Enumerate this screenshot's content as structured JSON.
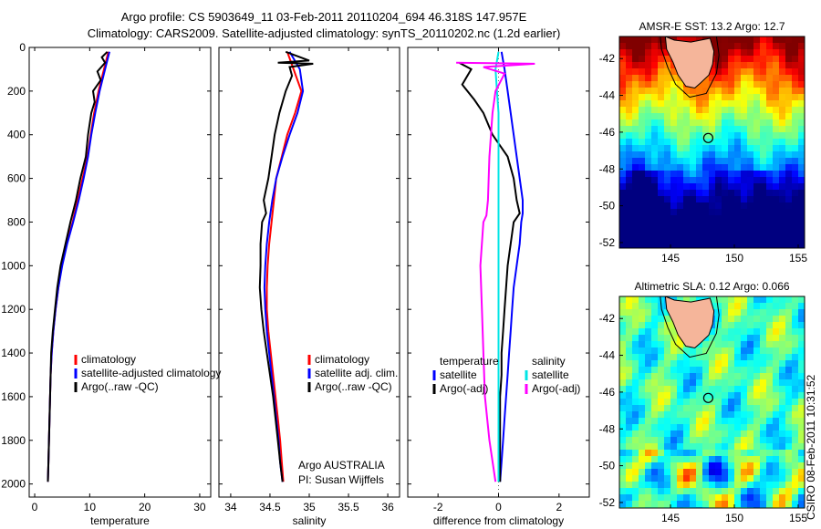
{
  "header": {
    "line1": "Argo profile: CS 5903649_11 03-Feb-2011 20110204_694 46.318S 147.957E",
    "line2": "Climatology: CARS2009. Satellite-adjusted climatology: synTS_20110202.nc (1.2d earlier)"
  },
  "side_label": "CSIRO 08-Feb-2011 10:31:52",
  "colors": {
    "climatology": "#ff0000",
    "satellite": "#0000ff",
    "argo": "#000000",
    "sat_diff_sal": "#00e5e5",
    "argo_diff_sal": "#ff00ff",
    "land": "#f5b59a"
  },
  "chart_data": [
    {
      "id": "temperature",
      "type": "line",
      "xlabel": "temperature",
      "ylabel": "",
      "xlim": [
        -1,
        32
      ],
      "ylim": [
        2060,
        0
      ],
      "x_ticks": [
        0,
        10,
        20,
        30
      ],
      "x_tick_labels": [
        "0",
        "10",
        "20",
        "30"
      ],
      "y_ticks": [
        0,
        200,
        400,
        600,
        800,
        1000,
        1200,
        1400,
        1600,
        1800,
        2000
      ],
      "y_tick_labels": [
        "0",
        "200",
        "400",
        "600",
        "800",
        "1000",
        "1200",
        "1400",
        "1600",
        "1800",
        "2000"
      ],
      "legend": {
        "position": "lower-right",
        "entries": [
          "climatology",
          "satellite-adjusted climatology",
          "Argo(..raw -QC)"
        ]
      },
      "series": [
        {
          "name": "climatology",
          "color": "#ff0000",
          "points": [
            [
              13.4,
              20
            ],
            [
              12.6,
              100
            ],
            [
              11.6,
              200
            ],
            [
              10.8,
              300
            ],
            [
              10.2,
              400
            ],
            [
              9.6,
              500
            ],
            [
              8.7,
              600
            ],
            [
              7.8,
              700
            ],
            [
              6.9,
              800
            ],
            [
              5.8,
              900
            ],
            [
              4.9,
              1000
            ],
            [
              4.3,
              1100
            ],
            [
              3.8,
              1200
            ],
            [
              3.4,
              1300
            ],
            [
              3.1,
              1400
            ],
            [
              2.9,
              1500
            ],
            [
              2.8,
              1600
            ],
            [
              2.7,
              1700
            ],
            [
              2.6,
              1800
            ],
            [
              2.5,
              1900
            ],
            [
              2.4,
              1990
            ]
          ]
        },
        {
          "name": "satellite-adjusted climatology",
          "color": "#0000ff",
          "points": [
            [
              13.6,
              20
            ],
            [
              12.8,
              100
            ],
            [
              11.8,
              200
            ],
            [
              11.0,
              300
            ],
            [
              10.3,
              400
            ],
            [
              9.7,
              500
            ],
            [
              8.9,
              600
            ],
            [
              8.0,
              700
            ],
            [
              7.0,
              800
            ],
            [
              5.9,
              900
            ],
            [
              5.0,
              1000
            ],
            [
              4.3,
              1100
            ],
            [
              3.8,
              1200
            ],
            [
              3.4,
              1300
            ],
            [
              3.1,
              1400
            ],
            [
              2.9,
              1500
            ],
            [
              2.8,
              1600
            ],
            [
              2.7,
              1700
            ],
            [
              2.6,
              1800
            ],
            [
              2.5,
              1900
            ],
            [
              2.4,
              1990
            ]
          ]
        },
        {
          "name": "Argo(..raw -QC)",
          "color": "#000000",
          "points": [
            [
              13.2,
              20
            ],
            [
              12.2,
              45
            ],
            [
              12.8,
              70
            ],
            [
              11.4,
              110
            ],
            [
              12.0,
              150
            ],
            [
              10.6,
              200
            ],
            [
              10.9,
              250
            ],
            [
              10.3,
              300
            ],
            [
              9.7,
              400
            ],
            [
              9.3,
              500
            ],
            [
              8.3,
              600
            ],
            [
              7.5,
              700
            ],
            [
              6.5,
              800
            ],
            [
              5.6,
              900
            ],
            [
              4.7,
              1000
            ],
            [
              4.1,
              1100
            ],
            [
              3.7,
              1200
            ],
            [
              3.3,
              1300
            ],
            [
              3.0,
              1400
            ],
            [
              2.9,
              1500
            ],
            [
              2.8,
              1600
            ],
            [
              2.7,
              1700
            ],
            [
              2.6,
              1800
            ],
            [
              2.5,
              1900
            ],
            [
              2.4,
              1990
            ]
          ]
        }
      ]
    },
    {
      "id": "salinity",
      "type": "line",
      "xlabel": "salinity",
      "ylabel": "",
      "xlim": [
        33.85,
        36.15
      ],
      "ylim": [
        2060,
        0
      ],
      "x_ticks": [
        34,
        34.5,
        35,
        35.5,
        36
      ],
      "x_tick_labels": [
        "34",
        "34.5",
        "35",
        "35.5",
        "36"
      ],
      "legend": {
        "position": "lower-right",
        "entries": [
          "climatology",
          "satellite adj. clim.",
          "Argo(..raw -QC)"
        ]
      },
      "annotation": [
        "Argo AUSTRALIA",
        "PI: Susan Wijffels"
      ],
      "series": [
        {
          "name": "climatology",
          "color": "#ff0000",
          "points": [
            [
              34.72,
              20
            ],
            [
              34.8,
              100
            ],
            [
              34.9,
              200
            ],
            [
              34.82,
              300
            ],
            [
              34.72,
              400
            ],
            [
              34.65,
              500
            ],
            [
              34.58,
              600
            ],
            [
              34.55,
              700
            ],
            [
              34.52,
              800
            ],
            [
              34.49,
              900
            ],
            [
              34.47,
              1000
            ],
            [
              34.46,
              1100
            ],
            [
              34.46,
              1200
            ],
            [
              34.48,
              1300
            ],
            [
              34.51,
              1400
            ],
            [
              34.54,
              1500
            ],
            [
              34.57,
              1600
            ],
            [
              34.6,
              1700
            ],
            [
              34.63,
              1800
            ],
            [
              34.65,
              1900
            ],
            [
              34.67,
              1990
            ]
          ]
        },
        {
          "name": "satellite adj. clim.",
          "color": "#0000ff",
          "points": [
            [
              34.75,
              20
            ],
            [
              34.88,
              100
            ],
            [
              34.92,
              200
            ],
            [
              34.85,
              300
            ],
            [
              34.75,
              400
            ],
            [
              34.66,
              500
            ],
            [
              34.58,
              600
            ],
            [
              34.53,
              700
            ],
            [
              34.49,
              800
            ],
            [
              34.46,
              900
            ],
            [
              34.44,
              1000
            ],
            [
              34.43,
              1100
            ],
            [
              34.44,
              1200
            ],
            [
              34.46,
              1300
            ],
            [
              34.49,
              1400
            ],
            [
              34.52,
              1500
            ],
            [
              34.55,
              1600
            ],
            [
              34.58,
              1700
            ],
            [
              34.61,
              1800
            ],
            [
              34.63,
              1900
            ],
            [
              34.66,
              1990
            ]
          ]
        },
        {
          "name": "Argo(..raw -QC)",
          "color": "#000000",
          "points": [
            [
              34.7,
              20
            ],
            [
              35.0,
              60
            ],
            [
              34.6,
              70
            ],
            [
              35.05,
              75
            ],
            [
              34.75,
              90
            ],
            [
              34.78,
              130
            ],
            [
              34.7,
              200
            ],
            [
              34.62,
              300
            ],
            [
              34.56,
              400
            ],
            [
              34.52,
              500
            ],
            [
              34.48,
              600
            ],
            [
              34.42,
              700
            ],
            [
              34.45,
              760
            ],
            [
              34.4,
              800
            ],
            [
              34.38,
              900
            ],
            [
              34.38,
              1000
            ],
            [
              34.37,
              1100
            ],
            [
              34.39,
              1200
            ],
            [
              34.42,
              1300
            ],
            [
              34.46,
              1400
            ],
            [
              34.5,
              1500
            ],
            [
              34.54,
              1600
            ],
            [
              34.57,
              1700
            ],
            [
              34.6,
              1800
            ],
            [
              34.63,
              1900
            ],
            [
              34.66,
              1990
            ]
          ]
        }
      ]
    },
    {
      "id": "difference",
      "type": "line",
      "xlabel": "difference from climatology",
      "ylabel": "",
      "xlim": [
        -3,
        3
      ],
      "ylim": [
        2060,
        0
      ],
      "x_ticks": [
        -2,
        0,
        2
      ],
      "x_tick_labels": [
        "-2",
        "0",
        "2"
      ],
      "legend": {
        "position": "lower",
        "groups": [
          {
            "title": "temperature",
            "entries": [
              "satellite",
              "Argo(-adj)"
            ]
          },
          {
            "title": "salinity",
            "entries": [
              "satellite",
              "Argo(-adj)"
            ]
          }
        ]
      },
      "series": [
        {
          "name": "temperature satellite",
          "color": "#0000ff",
          "points": [
            [
              0.1,
              20
            ],
            [
              0.2,
              100
            ],
            [
              0.3,
              200
            ],
            [
              0.4,
              300
            ],
            [
              0.5,
              400
            ],
            [
              0.6,
              500
            ],
            [
              0.7,
              600
            ],
            [
              0.8,
              700
            ],
            [
              0.8,
              760
            ],
            [
              0.75,
              800
            ],
            [
              0.7,
              900
            ],
            [
              0.6,
              1000
            ],
            [
              0.5,
              1100
            ],
            [
              0.45,
              1200
            ],
            [
              0.4,
              1300
            ],
            [
              0.35,
              1400
            ],
            [
              0.3,
              1500
            ],
            [
              0.25,
              1600
            ],
            [
              0.2,
              1700
            ],
            [
              0.15,
              1800
            ],
            [
              0.1,
              1900
            ],
            [
              0.05,
              1990
            ]
          ]
        },
        {
          "name": "temperature Argo(-adj)",
          "color": "#000000",
          "points": [
            [
              -1.3,
              70
            ],
            [
              -0.9,
              100
            ],
            [
              -1.2,
              170
            ],
            [
              -0.8,
              240
            ],
            [
              -0.5,
              300
            ],
            [
              -0.2,
              400
            ],
            [
              0.3,
              500
            ],
            [
              0.5,
              600
            ],
            [
              0.6,
              700
            ],
            [
              0.7,
              760
            ],
            [
              0.5,
              800
            ],
            [
              0.4,
              900
            ],
            [
              0.3,
              1000
            ],
            [
              0.25,
              1100
            ],
            [
              0.2,
              1200
            ],
            [
              0.15,
              1300
            ],
            [
              0.1,
              1400
            ],
            [
              0.1,
              1500
            ],
            [
              0.05,
              1600
            ],
            [
              0.05,
              1700
            ],
            [
              0.05,
              1800
            ],
            [
              0.05,
              1900
            ],
            [
              0.05,
              1990
            ]
          ]
        },
        {
          "name": "salinity satellite",
          "color": "#00e5e5",
          "points": [
            [
              0.0,
              20
            ],
            [
              -0.1,
              100
            ],
            [
              -0.05,
              200
            ],
            [
              0.0,
              300
            ],
            [
              0.0,
              500
            ],
            [
              0.0,
              800
            ],
            [
              0.0,
              1200
            ],
            [
              0.0,
              1600
            ],
            [
              0.0,
              1990
            ]
          ]
        },
        {
          "name": "salinity Argo(-adj)",
          "color": "#ff00ff",
          "points": [
            [
              -1.4,
              70
            ],
            [
              1.2,
              75
            ],
            [
              -0.5,
              90
            ],
            [
              0.2,
              120
            ],
            [
              -0.1,
              200
            ],
            [
              -0.2,
              300
            ],
            [
              -0.3,
              500
            ],
            [
              -0.35,
              700
            ],
            [
              -0.4,
              770
            ],
            [
              -0.5,
              800
            ],
            [
              -0.6,
              1000
            ],
            [
              -0.55,
              1200
            ],
            [
              -0.5,
              1400
            ],
            [
              -0.45,
              1600
            ],
            [
              -0.3,
              1800
            ],
            [
              -0.1,
              1990
            ]
          ]
        }
      ]
    },
    {
      "id": "sst_map",
      "type": "heatmap",
      "title": "AMSR-E SST: 13.2 Argo: 12.7",
      "xlim": [
        141,
        155.5
      ],
      "ylim": [
        -52.3,
        -40.8
      ],
      "x_ticks": [
        145,
        150,
        155
      ],
      "x_tick_labels": [
        "145",
        "150",
        "155"
      ],
      "y_ticks": [
        -42,
        -44,
        -46,
        -48,
        -50,
        -52
      ],
      "y_tick_labels": [
        "-42",
        "-44",
        "-46",
        "-48",
        "-50",
        "-52"
      ],
      "marker": {
        "lon": 147.957,
        "lat": -46.318
      }
    },
    {
      "id": "sla_map",
      "type": "heatmap",
      "title": "Altimetric SLA: 0.12 Argo: 0.066",
      "xlim": [
        141,
        155.5
      ],
      "ylim": [
        -52.3,
        -40.8
      ],
      "x_ticks": [
        145,
        150,
        155
      ],
      "x_tick_labels": [
        "145",
        "150",
        "155"
      ],
      "y_ticks": [
        -42,
        -44,
        -46,
        -48,
        -50,
        -52
      ],
      "y_tick_labels": [
        "-42",
        "-44",
        "-46",
        "-48",
        "-50",
        "-52"
      ],
      "marker": {
        "lon": 147.957,
        "lat": -46.318
      }
    }
  ]
}
